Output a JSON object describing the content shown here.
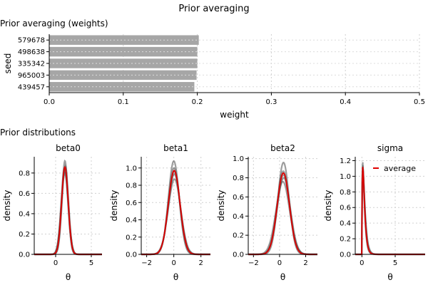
{
  "figure": {
    "title": "Prior averaging",
    "top_section_title": "Prior averaging (weights)",
    "bottom_section_title": "Prior distributions"
  },
  "colors": {
    "bar": "#a6a6a6",
    "draw": "#4d4d4d",
    "average": "#e00000",
    "grid": "#d0d0d0"
  },
  "chart_data": [
    {
      "type": "bar",
      "orientation": "horizontal",
      "title": "Prior averaging (weights)",
      "xlabel": "weight",
      "ylabel": "seed",
      "categories": [
        "579678",
        "498638",
        "335342",
        "965003",
        "439457"
      ],
      "values": [
        0.202,
        0.2,
        0.2,
        0.199,
        0.196
      ],
      "xlim": [
        0,
        0.5
      ],
      "xticks": [
        "0.0",
        "0.1",
        "0.2",
        "0.3",
        "0.4",
        "0.5"
      ],
      "grid": true
    },
    {
      "type": "line",
      "title": "beta0",
      "xlabel": "θ",
      "ylabel": "density",
      "xlim": [
        -3,
        6.5
      ],
      "ylim": [
        0,
        0.96
      ],
      "xticks": [
        {
          "v": 0,
          "label": "0"
        },
        {
          "v": 5,
          "label": "5"
        }
      ],
      "yticks": [
        {
          "v": 0,
          "label": "0.0"
        },
        {
          "v": 0.2,
          "label": "0.2"
        },
        {
          "v": 0.4,
          "label": "0.4"
        },
        {
          "v": 0.6,
          "label": "0.6"
        },
        {
          "v": 0.8,
          "label": "0.8"
        }
      ],
      "series": [
        {
          "kind": "draw",
          "mu": 1.3,
          "sd": 0.43,
          "peak": 0.92
        },
        {
          "kind": "draw",
          "mu": 1.25,
          "sd": 0.47,
          "peak": 0.85
        },
        {
          "kind": "draw",
          "mu": 1.28,
          "sd": 0.5,
          "peak": 0.8
        },
        {
          "kind": "draw",
          "mu": 1.35,
          "sd": 0.45,
          "peak": 0.87
        },
        {
          "kind": "draw",
          "mu": 1.3,
          "sd": 0.48,
          "peak": 0.83
        },
        {
          "kind": "average",
          "mu": 1.3,
          "sd": 0.46,
          "peak": 0.86
        }
      ]
    },
    {
      "type": "line",
      "title": "beta1",
      "xlabel": "θ",
      "ylabel": "density",
      "xlim": [
        -2.4,
        2.7
      ],
      "ylim": [
        0,
        1.13
      ],
      "xticks": [
        {
          "v": -2,
          "label": "−2"
        },
        {
          "v": 0,
          "label": "0"
        },
        {
          "v": 2,
          "label": "2"
        }
      ],
      "yticks": [
        {
          "v": 0,
          "label": "0.0"
        },
        {
          "v": 0.2,
          "label": "0.2"
        },
        {
          "v": 0.4,
          "label": "0.4"
        },
        {
          "v": 0.6,
          "label": "0.6"
        },
        {
          "v": 0.8,
          "label": "0.8"
        },
        {
          "v": 1.0,
          "label": "1.0"
        }
      ],
      "series": [
        {
          "kind": "draw",
          "mu": 0.0,
          "sd": 0.4,
          "peak": 1.08
        },
        {
          "kind": "draw",
          "mu": 0.05,
          "sd": 0.46,
          "peak": 0.87
        },
        {
          "kind": "draw",
          "mu": 0.02,
          "sd": 0.42,
          "peak": 1.0
        },
        {
          "kind": "draw",
          "mu": 0.04,
          "sd": 0.44,
          "peak": 0.93
        },
        {
          "kind": "draw",
          "mu": 0.03,
          "sd": 0.43,
          "peak": 0.96
        },
        {
          "kind": "average",
          "mu": 0.03,
          "sd": 0.43,
          "peak": 0.97
        }
      ]
    },
    {
      "type": "line",
      "title": "beta2",
      "xlabel": "θ",
      "ylabel": "density",
      "xlim": [
        -2.4,
        2.9
      ],
      "ylim": [
        0,
        1.02
      ],
      "xticks": [
        {
          "v": -2,
          "label": "−2"
        },
        {
          "v": 0,
          "label": "0"
        },
        {
          "v": 2,
          "label": "2"
        }
      ],
      "yticks": [
        {
          "v": 0,
          "label": "0.0"
        },
        {
          "v": 0.2,
          "label": "0.2"
        },
        {
          "v": 0.4,
          "label": "0.4"
        },
        {
          "v": 0.6,
          "label": "0.6"
        },
        {
          "v": 0.8,
          "label": "0.8"
        },
        {
          "v": 1.0,
          "label": "1.0"
        }
      ],
      "series": [
        {
          "kind": "draw",
          "mu": 0.3,
          "sd": 0.43,
          "peak": 0.96
        },
        {
          "kind": "draw",
          "mu": 0.25,
          "sd": 0.52,
          "peak": 0.76
        },
        {
          "kind": "draw",
          "mu": 0.28,
          "sd": 0.47,
          "peak": 0.87
        },
        {
          "kind": "draw",
          "mu": 0.32,
          "sd": 0.5,
          "peak": 0.8
        },
        {
          "kind": "draw",
          "mu": 0.3,
          "sd": 0.48,
          "peak": 0.83
        },
        {
          "kind": "average",
          "mu": 0.29,
          "sd": 0.47,
          "peak": 0.85
        }
      ]
    },
    {
      "type": "line",
      "title": "sigma",
      "xlabel": "θ",
      "ylabel": "density",
      "xlim": [
        -1,
        9.5
      ],
      "ylim": [
        0,
        1.25
      ],
      "xticks": [
        {
          "v": 0,
          "label": "0"
        },
        {
          "v": 5,
          "label": "5"
        }
      ],
      "yticks": [
        {
          "v": 0,
          "label": "0.0"
        },
        {
          "v": 0.2,
          "label": "0.2"
        },
        {
          "v": 0.4,
          "label": "0.4"
        },
        {
          "v": 0.6,
          "label": "0.6"
        },
        {
          "v": 0.8,
          "label": "0.8"
        },
        {
          "v": 1.0,
          "label": "1.0"
        },
        {
          "v": 1.2,
          "label": "1.2"
        }
      ],
      "legend": {
        "label": "average",
        "position": "top-right"
      },
      "series": [
        {
          "kind": "draw",
          "mode": 0.12,
          "peak": 1.18
        },
        {
          "kind": "draw",
          "mode": 0.14,
          "peak": 1.1
        },
        {
          "kind": "draw",
          "mode": 0.13,
          "peak": 1.14
        },
        {
          "kind": "draw",
          "mode": 0.15,
          "peak": 1.06
        },
        {
          "kind": "average",
          "mode": 0.13,
          "peak": 1.12
        }
      ]
    }
  ]
}
